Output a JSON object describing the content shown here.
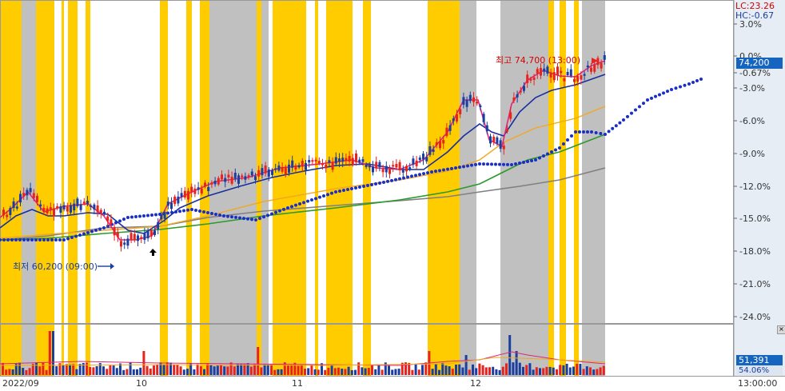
{
  "price_axis": {
    "lc_label": "LC:23.26",
    "hc_label": "HC:-0.67",
    "ticks": [
      "3.0%",
      "0.0%",
      "-0.67%",
      "-3.0%",
      "-6.0%",
      "-9.0%",
      "-12.0%",
      "-15.0%",
      "-18.0%",
      "-21.0%",
      "-24.0%"
    ],
    "last_price": "74,200"
  },
  "volume_axis": {
    "last_volume": "51,391",
    "volume_pct": "54.06%",
    "close_icon": "close-x-icon"
  },
  "annotations": {
    "high": "최고 74,700 (13:00)",
    "low": "최저 60,200 (09:00)"
  },
  "time_axis": {
    "labels": [
      "2022/09",
      "10",
      "11",
      "12",
      "13:00:00"
    ]
  },
  "colors": {
    "highlight_yellow": "#ffcc00",
    "highlight_gray": "#c0c0c0",
    "up_candle": "#e8231e",
    "down_candle": "#1a3fa0",
    "ma_short": "#e0257a",
    "ma_mid": "#1a2f9e",
    "ma_long1": "#f0a820",
    "ma_long2": "#2a9a2a",
    "ma_long3": "#808080",
    "ichimoku_dots": "#1a2fc8",
    "price_tag_bg": "#1565c0"
  },
  "chart_data": {
    "type": "candlestick",
    "panes": [
      "price",
      "volume"
    ],
    "y_unit": "% change",
    "ylim": [
      -25,
      4
    ],
    "high_marker": {
      "price": 74700,
      "time": "13:00"
    },
    "low_marker": {
      "price": 60200,
      "time": "09:00"
    },
    "last_price": 74200,
    "last_volume": 51391
  }
}
